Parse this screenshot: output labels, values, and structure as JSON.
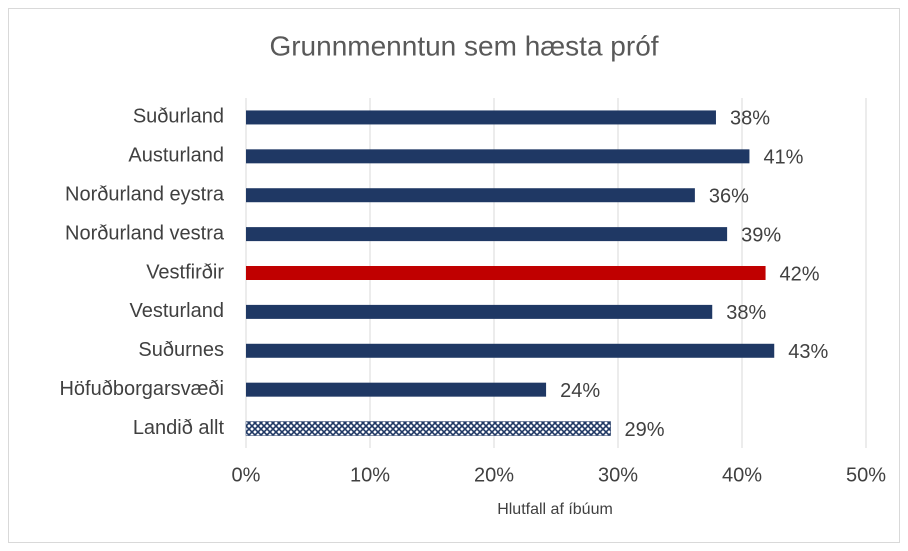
{
  "chart_data": {
    "type": "hbar",
    "title": "Grunnmenntun sem hæsta próf",
    "categories": [
      "Suðurland",
      "Austurland",
      "Norðurland eystra",
      "Norðurland vestra",
      "Vestfirðir",
      "Vesturland",
      "Suðurnes",
      "Höfuðborgarsvæði",
      "Landið allt"
    ],
    "values": [
      37.9,
      40.6,
      36.2,
      38.8,
      41.9,
      37.6,
      42.6,
      24.2,
      29.4
    ],
    "value_labels": [
      "38%",
      "41%",
      "36%",
      "39%",
      "42%",
      "38%",
      "43%",
      "24%",
      "29%"
    ],
    "colors": [
      "#1f3864",
      "#1f3864",
      "#1f3864",
      "#1f3864",
      "#c00000",
      "#1f3864",
      "#1f3864",
      "#1f3864",
      "#1f3864"
    ],
    "patterns": [
      null,
      null,
      null,
      null,
      null,
      null,
      null,
      null,
      "crosshatch"
    ],
    "xlabel": "Hlutfall af íbúum",
    "xlim": [
      0,
      50
    ],
    "xticks": [
      {
        "value": 0,
        "label": "0%"
      },
      {
        "value": 10,
        "label": "10%"
      },
      {
        "value": 20,
        "label": "20%"
      },
      {
        "value": 30,
        "label": "30%"
      },
      {
        "value": 40,
        "label": "40%"
      },
      {
        "value": 50,
        "label": "50%"
      }
    ],
    "grid": true
  }
}
